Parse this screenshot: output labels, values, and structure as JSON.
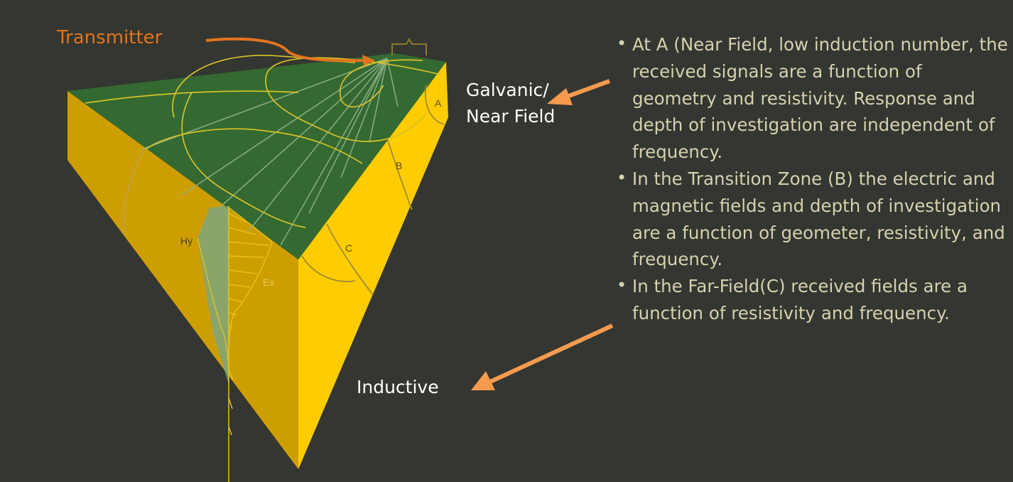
{
  "labels": {
    "transmitter": "Transmitter",
    "galvanic_line1": "Galvanic/",
    "galvanic_line2": "Near Field",
    "inductive": "Inductive"
  },
  "figure_labels": {
    "a": "A",
    "b": "B",
    "c": "C",
    "hy": "Hy",
    "ex": "Ex"
  },
  "bullets": [
    "At A (Near Field, low induction number, the received signals are a function of geometry and resistivity. Response and depth of investigation are independent of frequency.",
    "In the Transition Zone (B) the electric and magnetic fields and depth of investigation are a function of geometer, resistivity, and frequency.",
    "In the Far-Field(C) received fields are a function of resistivity and frequency."
  ],
  "colors": {
    "background": "#343631",
    "top_face": "#346A31",
    "left_face": "#CE9E00",
    "right_face": "#FFCC00",
    "arrow_orange": "#F59A4E",
    "transmitter_orange": "#E2741E",
    "bullet_text": "#D6D1AE"
  }
}
